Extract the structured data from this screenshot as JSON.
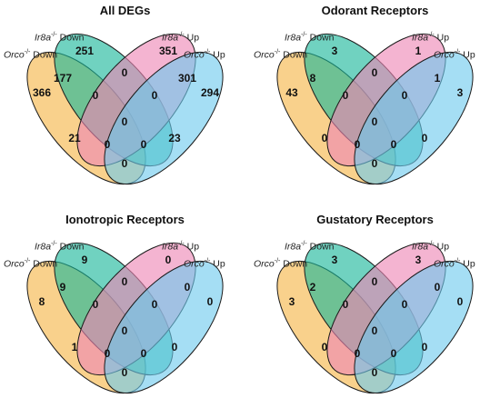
{
  "sets": [
    {
      "gene": "Orco",
      "sup": "-/-",
      "dir": "Down",
      "color": "#f6b546"
    },
    {
      "gene": "Ir8a",
      "sup": "-/-",
      "dir": "Down",
      "color": "#19b69a"
    },
    {
      "gene": "Ir8a",
      "sup": "-/-",
      "dir": "Up",
      "color": "#ee86b4"
    },
    {
      "gene": "Orco",
      "sup": "-/-",
      "dir": "Up",
      "color": "#6ec9ee"
    }
  ],
  "panels": [
    {
      "title": "All DEGs",
      "counts": {
        "A": "366",
        "B": "251",
        "C": "351",
        "D": "294",
        "AB": "177",
        "CD": "301",
        "AC": "21",
        "BD": "23",
        "BC": "0",
        "AD": "0",
        "ABC": "0",
        "BCD": "0",
        "ABD": "0",
        "ACD": "0",
        "ABCD": "0"
      }
    },
    {
      "title": "Odorant Receptors",
      "counts": {
        "A": "43",
        "B": "3",
        "C": "1",
        "D": "3",
        "AB": "8",
        "CD": "1",
        "AC": "0",
        "BD": "0",
        "BC": "0",
        "AD": "0",
        "ABC": "0",
        "BCD": "0",
        "ABD": "0",
        "ACD": "0",
        "ABCD": "0"
      }
    },
    {
      "title": "Ionotropic Receptors",
      "counts": {
        "A": "8",
        "B": "9",
        "C": "0",
        "D": "0",
        "AB": "9",
        "CD": "0",
        "AC": "1",
        "BD": "0",
        "BC": "0",
        "AD": "0",
        "ABC": "0",
        "BCD": "0",
        "ABD": "0",
        "ACD": "0",
        "ABCD": "0"
      }
    },
    {
      "title": "Gustatory Receptors",
      "counts": {
        "A": "3",
        "B": "3",
        "C": "3",
        "D": "0",
        "AB": "2",
        "CD": "0",
        "AC": "0",
        "BD": "0",
        "BC": "0",
        "AD": "0",
        "ABC": "0",
        "BCD": "0",
        "ABD": "0",
        "ACD": "0",
        "ABCD": "0"
      }
    }
  ]
}
